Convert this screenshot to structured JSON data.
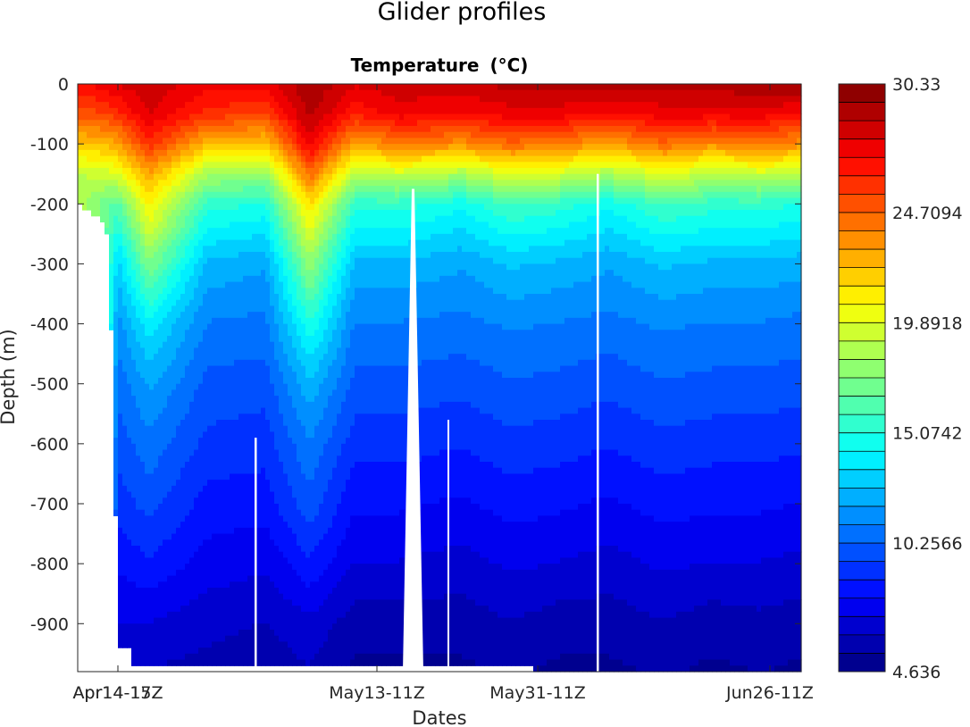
{
  "chart_data": {
    "type": "heatmap",
    "suptitle": "Glider profiles",
    "title": "Temperature",
    "title_unit": "(°C)",
    "xlabel": "Dates",
    "ylabel": "Depth  (m)",
    "ylim": [
      -980,
      0
    ],
    "yticks": [
      0,
      -100,
      -200,
      -300,
      -400,
      -500,
      -600,
      -700,
      -800,
      -900
    ],
    "x_ticks": [
      {
        "label": "Apr14-15Z",
        "day": 0
      },
      {
        "label": "Apr14-17Z",
        "day": 0
      },
      {
        "label": "May13-11Z",
        "day": 29
      },
      {
        "label": "May31-11Z",
        "day": 47
      },
      {
        "label": "Jun26-11Z",
        "day": 73
      }
    ],
    "xlim_days": [
      -4.5,
      76.5
    ],
    "colorbar": {
      "min": 4.636,
      "max": 30.33,
      "levels": 32,
      "tick_labels": [
        "30.33",
        "24.7094",
        "19.8918",
        "15.0742",
        "10.2566",
        "4.636"
      ],
      "colormap": "jet"
    },
    "profiles": {
      "depth_m": [
        0,
        50,
        100,
        150,
        200,
        300,
        400,
        500,
        600,
        700,
        800,
        900,
        975
      ],
      "columns": [
        {
          "day": -4.5,
          "bottom": -200,
          "temps": [
            27.0,
            25.0,
            22.0,
            19.0
          ]
        },
        {
          "day": -1.5,
          "bottom": -230,
          "temps": [
            27.5,
            25.5,
            22.5,
            19.5,
            17.0
          ]
        },
        {
          "day": 0.0,
          "bottom": -940,
          "temps": [
            28.0,
            26.0,
            23.0,
            20.0,
            16.5,
            13.0,
            11.5,
            10.5,
            9.8,
            9.0,
            8.0,
            7.0,
            6.5
          ]
        },
        {
          "day": 3.5,
          "bottom": -970,
          "temps": [
            28.5,
            28.0,
            26.0,
            23.0,
            21.0,
            17.5,
            14.0,
            12.0,
            10.8,
            9.8,
            8.5,
            7.0,
            6.2
          ]
        },
        {
          "day": 10.0,
          "bottom": -970,
          "temps": [
            27.5,
            26.0,
            22.5,
            18.5,
            15.5,
            12.5,
            11.0,
            10.0,
            9.2,
            8.3,
            7.5,
            6.5,
            6.0
          ]
        },
        {
          "day": 16.5,
          "bottom": -970,
          "temps": [
            27.5,
            25.5,
            22.0,
            18.0,
            15.0,
            12.0,
            10.8,
            9.8,
            9.0,
            8.2,
            7.2,
            6.2,
            5.8
          ]
        },
        {
          "day": 21.5,
          "bottom": -970,
          "temps": [
            29.5,
            29.0,
            27.5,
            24.5,
            21.5,
            18.0,
            15.0,
            12.5,
            11.0,
            10.0,
            8.5,
            6.8,
            6.2
          ]
        },
        {
          "day": 26.5,
          "bottom": -970,
          "temps": [
            28.0,
            26.5,
            23.0,
            19.0,
            15.5,
            12.5,
            11.0,
            10.0,
            9.0,
            8.0,
            7.0,
            5.8,
            5.3
          ]
        },
        {
          "day": 31.5,
          "bottom": -970,
          "temps": [
            28.5,
            27.5,
            24.0,
            19.5,
            15.5,
            12.5,
            11.0,
            10.0,
            9.0,
            8.0,
            7.0,
            5.8,
            5.3
          ]
        },
        {
          "day": 38.5,
          "bottom": -970,
          "temps": [
            28.5,
            27.0,
            23.5,
            18.5,
            14.5,
            12.0,
            10.8,
            9.7,
            8.7,
            7.7,
            6.7,
            5.8,
            5.3
          ]
        },
        {
          "day": 44.0,
          "bottom": -970,
          "temps": [
            29.0,
            27.5,
            24.5,
            20.0,
            16.0,
            12.8,
            11.2,
            10.2,
            9.2,
            8.2,
            7.2,
            6.2,
            5.6
          ]
        },
        {
          "day": 49.5,
          "bottom": -975,
          "temps": [
            29.0,
            27.5,
            24.0,
            19.5,
            15.5,
            12.5,
            11.0,
            10.0,
            9.0,
            8.0,
            7.0,
            5.8,
            5.3
          ]
        },
        {
          "day": 55.0,
          "bottom": -975,
          "temps": [
            29.0,
            27.0,
            23.0,
            18.5,
            14.5,
            12.0,
            10.8,
            9.7,
            8.7,
            7.7,
            6.7,
            5.8,
            5.3
          ]
        },
        {
          "day": 61.0,
          "bottom": -975,
          "temps": [
            29.0,
            27.5,
            24.5,
            20.0,
            16.0,
            12.8,
            11.2,
            10.2,
            9.2,
            8.2,
            7.2,
            6.2,
            5.6
          ]
        },
        {
          "day": 66.5,
          "bottom": -975,
          "temps": [
            29.0,
            27.5,
            23.5,
            19.0,
            15.5,
            12.5,
            11.0,
            10.0,
            9.0,
            8.0,
            7.0,
            5.8,
            5.3
          ]
        },
        {
          "day": 72.0,
          "bottom": -975,
          "temps": [
            29.5,
            27.5,
            24.0,
            19.5,
            15.5,
            12.5,
            11.0,
            10.0,
            9.0,
            8.0,
            7.0,
            6.0,
            5.5
          ]
        },
        {
          "day": 76.5,
          "bottom": -975,
          "temps": [
            29.5,
            27.0,
            23.5,
            19.0,
            15.0,
            12.2,
            10.8,
            9.8,
            8.8,
            7.8,
            6.8,
            5.8,
            5.3
          ]
        }
      ],
      "gaps": [
        {
          "day_start": 15.3,
          "day_end": 15.55,
          "depth_from": -590
        },
        {
          "day_start": 31.9,
          "day_end": 34.2,
          "depth_from": -175
        },
        {
          "day_start": 36.9,
          "day_end": 37.1,
          "depth_from": -560
        },
        {
          "day_start": 53.6,
          "day_end": 53.85,
          "depth_from": -150
        }
      ]
    }
  }
}
